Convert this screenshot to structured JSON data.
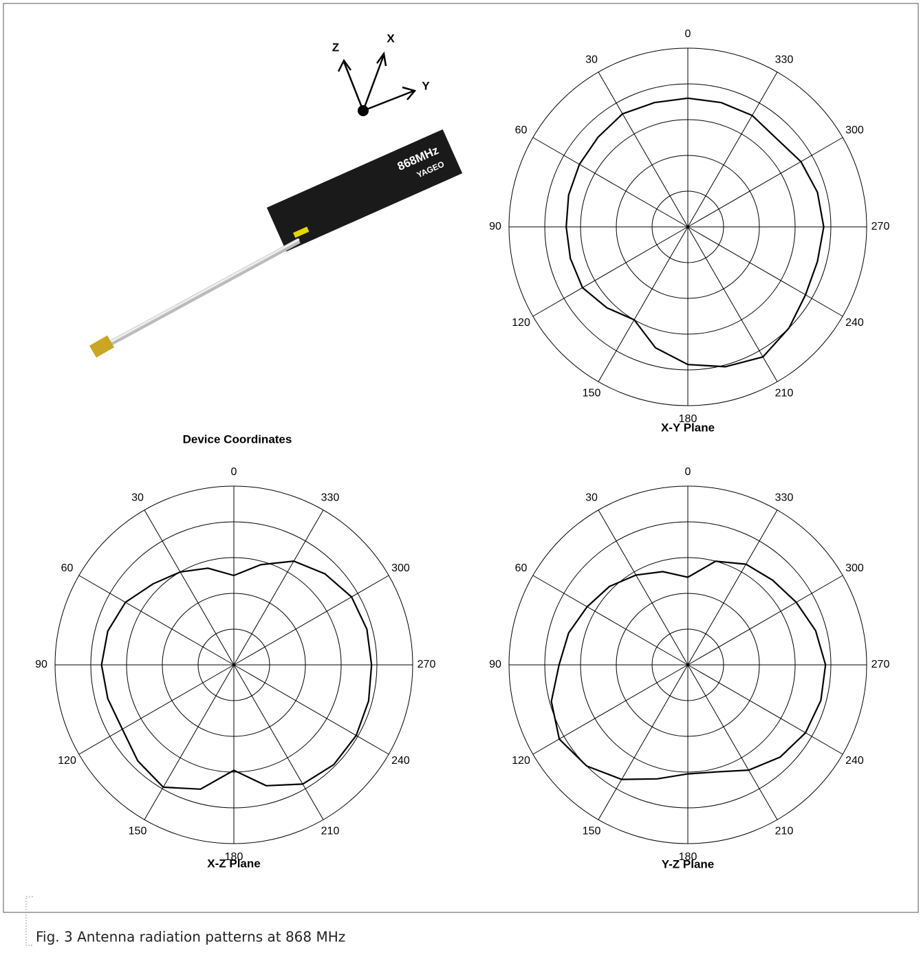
{
  "device": {
    "title": "Device Coordinates",
    "axes": [
      "Z",
      "X",
      "Y"
    ],
    "label": "868MHz",
    "brand": "YAGEO"
  },
  "caption": "Fig. 3   Antenna radiation patterns at 868 MHz",
  "chart_data": [
    {
      "type": "polar",
      "title": "X-Y Plane",
      "direction": "counterclockwise",
      "xticks": [
        0,
        30,
        60,
        90,
        120,
        150,
        180,
        210,
        240,
        270,
        300,
        330
      ],
      "rlim": [
        0,
        5
      ],
      "rticks": [
        1,
        2,
        3,
        4,
        5
      ],
      "grid": true,
      "x": [
        0,
        15,
        30,
        45,
        60,
        75,
        90,
        105,
        120,
        135,
        150,
        165,
        180,
        195,
        210,
        225,
        240,
        255,
        270,
        285,
        300,
        315,
        330,
        345
      ],
      "series": [
        {
          "color": "#000000",
          "values": [
            3.6,
            3.6,
            3.65,
            3.55,
            3.5,
            3.45,
            3.4,
            3.4,
            3.4,
            3.2,
            3.0,
            3.5,
            3.85,
            4.05,
            4.2,
            4.0,
            3.8,
            3.75,
            3.8,
            3.75,
            3.65,
            3.5,
            3.6,
            3.6
          ]
        }
      ]
    },
    {
      "type": "polar",
      "title": "X-Z Plane",
      "direction": "counterclockwise",
      "xticks": [
        0,
        30,
        60,
        90,
        120,
        150,
        180,
        210,
        240,
        270,
        300,
        330
      ],
      "rlim": [
        0,
        5
      ],
      "rticks": [
        1,
        2,
        3,
        4,
        5
      ],
      "grid": true,
      "x": [
        0,
        15,
        30,
        45,
        60,
        75,
        90,
        105,
        120,
        135,
        150,
        165,
        180,
        195,
        210,
        225,
        240,
        255,
        270,
        285,
        300,
        315,
        330,
        345
      ],
      "series": [
        {
          "color": "#000000",
          "values": [
            2.5,
            2.8,
            3.0,
            3.2,
            3.5,
            3.65,
            3.7,
            3.65,
            3.6,
            3.8,
            3.95,
            3.6,
            2.95,
            3.5,
            3.85,
            3.95,
            3.95,
            3.9,
            3.85,
            3.85,
            3.8,
            3.6,
            3.35,
            2.9
          ]
        }
      ]
    },
    {
      "type": "polar",
      "title": "Y-Z Plane",
      "direction": "counterclockwise",
      "xticks": [
        0,
        30,
        60,
        90,
        120,
        150,
        180,
        210,
        240,
        270,
        300,
        330
      ],
      "rlim": [
        0,
        5
      ],
      "rticks": [
        1,
        2,
        3,
        4,
        5
      ],
      "grid": true,
      "x": [
        0,
        15,
        30,
        45,
        60,
        75,
        90,
        105,
        120,
        135,
        150,
        165,
        180,
        195,
        210,
        225,
        240,
        255,
        270,
        285,
        300,
        315,
        330,
        345
      ],
      "series": [
        {
          "color": "#000000",
          "values": [
            2.45,
            2.7,
            2.9,
            3.1,
            3.25,
            3.45,
            3.6,
            3.95,
            4.15,
            4.0,
            3.7,
            3.3,
            3.05,
            3.1,
            3.4,
            3.65,
            3.8,
            3.85,
            3.85,
            3.7,
            3.5,
            3.35,
            3.25,
            3.0
          ]
        }
      ]
    }
  ]
}
